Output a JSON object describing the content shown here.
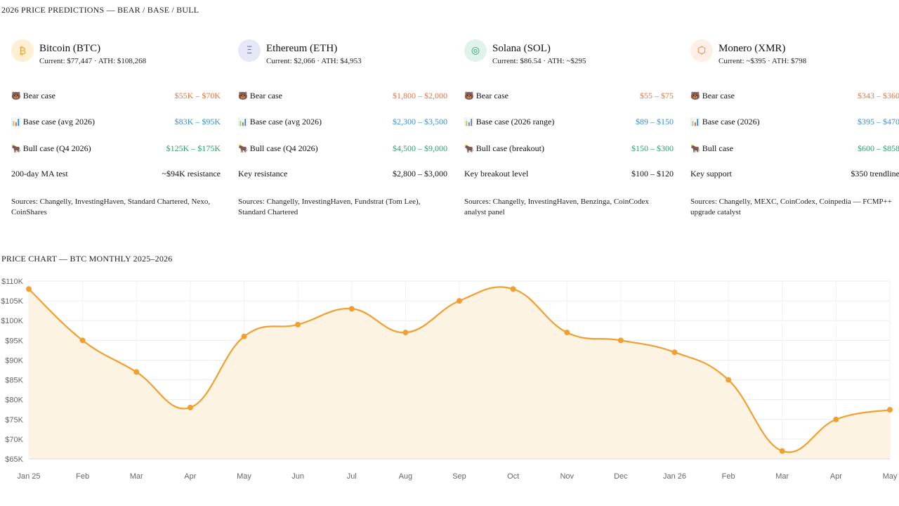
{
  "predictions_title": "2026 PRICE PREDICTIONS — BEAR / BASE / BULL",
  "chart_title": "PRICE CHART — BTC MONTHLY 2025–2026",
  "colors": {
    "bear": "#e8743b",
    "base": "#3b8ed8",
    "bull": "#2e9e6a",
    "line": "#f0a030",
    "fill": "#fdf3e3"
  },
  "cards": [
    {
      "icon": "₿",
      "icon_name": "bitcoin-icon",
      "icon_bg": "#fdf0d2",
      "icon_color": "#f2a12e",
      "name": "Bitcoin (BTC)",
      "stats": "Current: $77,447 · ATH: $108,268",
      "rows": [
        {
          "emoji": "🐻",
          "label": "Bear case",
          "value": "$55K – $70K",
          "tone": "bear"
        },
        {
          "emoji": "📊",
          "label": "Base case (avg 2026)",
          "value": "$83K – $95K",
          "tone": "base"
        },
        {
          "emoji": "🐂",
          "label": "Bull case (Q4 2026)",
          "value": "$125K – $175K",
          "tone": "bull"
        },
        {
          "emoji": "",
          "label": "200-day MA test",
          "value": "~$94K resistance",
          "tone": "plain"
        }
      ],
      "sources": "Sources: Changelly, InvestingHaven, Standard Chartered, Nexo, CoinShares"
    },
    {
      "icon": "Ξ",
      "icon_name": "ethereum-icon",
      "icon_bg": "#e6e8f8",
      "icon_color": "#6b73c8",
      "name": "Ethereum (ETH)",
      "stats": "Current: $2,066 · ATH: $4,953",
      "rows": [
        {
          "emoji": "🐻",
          "label": "Bear case",
          "value": "$1,800 – $2,000",
          "tone": "bear"
        },
        {
          "emoji": "📊",
          "label": "Base case (avg 2026)",
          "value": "$2,300 – $3,500",
          "tone": "base"
        },
        {
          "emoji": "🐂",
          "label": "Bull case (Q4 2026)",
          "value": "$4,500 – $9,000",
          "tone": "bull"
        },
        {
          "emoji": "",
          "label": "Key resistance",
          "value": "$2,800 – $3,000",
          "tone": "plain"
        }
      ],
      "sources": "Sources: Changelly, InvestingHaven, Fundstrat (Tom Lee), Standard Chartered"
    },
    {
      "icon": "◎",
      "icon_name": "solana-icon",
      "icon_bg": "#dff3ea",
      "icon_color": "#2e9e6a",
      "name": "Solana (SOL)",
      "stats": "Current: $86.54 · ATH: ~$295",
      "rows": [
        {
          "emoji": "🐻",
          "label": "Bear case",
          "value": "$55 – $75",
          "tone": "bear"
        },
        {
          "emoji": "📊",
          "label": "Base case (2026 range)",
          "value": "$89 – $150",
          "tone": "base"
        },
        {
          "emoji": "🐂",
          "label": "Bull case (breakout)",
          "value": "$150 – $300",
          "tone": "bull"
        },
        {
          "emoji": "",
          "label": "Key breakout level",
          "value": "$100 – $120",
          "tone": "plain"
        }
      ],
      "sources": "Sources: Changelly, InvestingHaven, Benzinga, CoinCodex analyst panel"
    },
    {
      "icon": "⬡",
      "icon_name": "monero-icon",
      "icon_bg": "#fdeee6",
      "icon_color": "#e8743b",
      "name": "Monero (XMR)",
      "stats": "Current: ~$395 · ATH: $798",
      "rows": [
        {
          "emoji": "🐻",
          "label": "Bear case",
          "value": "$343 – $360",
          "tone": "bear"
        },
        {
          "emoji": "📊",
          "label": "Base case (2026)",
          "value": "$395 – $470",
          "tone": "base"
        },
        {
          "emoji": "🐂",
          "label": "Bull case",
          "value": "$600 – $858",
          "tone": "bull"
        },
        {
          "emoji": "",
          "label": "Key support",
          "value": "$350 trendline",
          "tone": "plain"
        }
      ],
      "sources": "Sources: Changelly, MEXC, CoinCodex, Coinpedia — FCMP++ upgrade catalyst"
    }
  ],
  "chart_data": {
    "type": "area",
    "title": "",
    "xlabel": "",
    "ylabel": "",
    "categories": [
      "Jan 25",
      "Feb",
      "Mar",
      "Apr",
      "May",
      "Jun",
      "Jul",
      "Aug",
      "Sep",
      "Oct",
      "Nov",
      "Dec",
      "Jan 26",
      "Feb",
      "Mar",
      "Apr",
      "May"
    ],
    "series": [
      {
        "values": [
          108000,
          95000,
          87000,
          78000,
          96000,
          99000,
          103000,
          97000,
          105000,
          108000,
          97000,
          95000,
          92000,
          85000,
          67000,
          75000,
          77447
        ]
      }
    ],
    "ylim": [
      65000,
      110000
    ],
    "yticks": [
      65000,
      70000,
      75000,
      80000,
      85000,
      90000,
      95000,
      100000,
      105000,
      110000
    ],
    "ytick_labels": [
      "$65K",
      "$70K",
      "$75K",
      "$80K",
      "$85K",
      "$90K",
      "$95K",
      "$100K",
      "$105K",
      "$110K"
    ],
    "grid": true,
    "legend": "none"
  }
}
